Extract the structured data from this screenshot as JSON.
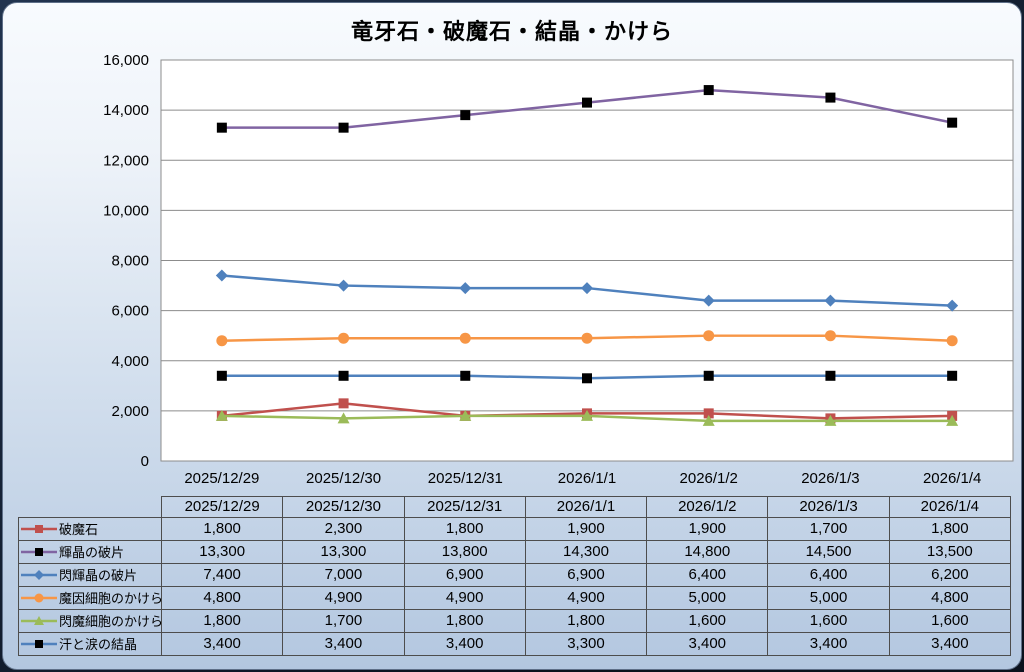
{
  "chart_data": {
    "type": "line",
    "title": "竜牙石・破魔石・結晶・かけら",
    "categories": [
      "2025/12/29",
      "2025/12/30",
      "2025/12/31",
      "2026/1/1",
      "2026/1/2",
      "2026/1/3",
      "2026/1/4"
    ],
    "series": [
      {
        "name": "破魔石",
        "values": [
          1800,
          2300,
          1800,
          1900,
          1900,
          1700,
          1800
        ],
        "color": "#C0504D",
        "marker": "square",
        "marker_color": "#C0504D"
      },
      {
        "name": "輝晶の破片",
        "values": [
          13300,
          13300,
          13800,
          14300,
          14800,
          14500,
          13500
        ],
        "color": "#8064A2",
        "marker": "square",
        "marker_color": "#000000"
      },
      {
        "name": "閃輝晶の破片",
        "values": [
          7400,
          7000,
          6900,
          6900,
          6400,
          6400,
          6200
        ],
        "color": "#4F81BD",
        "marker": "diamond",
        "marker_color": "#4F81BD"
      },
      {
        "name": "魔因細胞のかけら",
        "values": [
          4800,
          4900,
          4900,
          4900,
          5000,
          5000,
          4800
        ],
        "color": "#F79646",
        "marker": "circle",
        "marker_color": "#F79646"
      },
      {
        "name": "閃魔細胞のかけら",
        "values": [
          1800,
          1700,
          1800,
          1800,
          1600,
          1600,
          1600
        ],
        "color": "#9BBB59",
        "marker": "triangle",
        "marker_color": "#9BBB59"
      },
      {
        "name": "汗と涙の結晶",
        "values": [
          3400,
          3400,
          3400,
          3300,
          3400,
          3400,
          3400
        ],
        "color": "#4F81BD",
        "marker": "square",
        "marker_color": "#000000"
      }
    ],
    "ylim": [
      0,
      16000
    ],
    "ytick_step": 2000,
    "grid": true,
    "data_table": true,
    "legend_position": "table-left",
    "plot_background": "#ffffff",
    "gridline_color": "#8c8c8c"
  },
  "theme": {
    "page_background": "#0a111d",
    "card_gradient_top": "#f8fbfe",
    "card_gradient_bottom": "#b3c7e0",
    "table_border": "#4d4d4d",
    "text_color": "#000000"
  }
}
